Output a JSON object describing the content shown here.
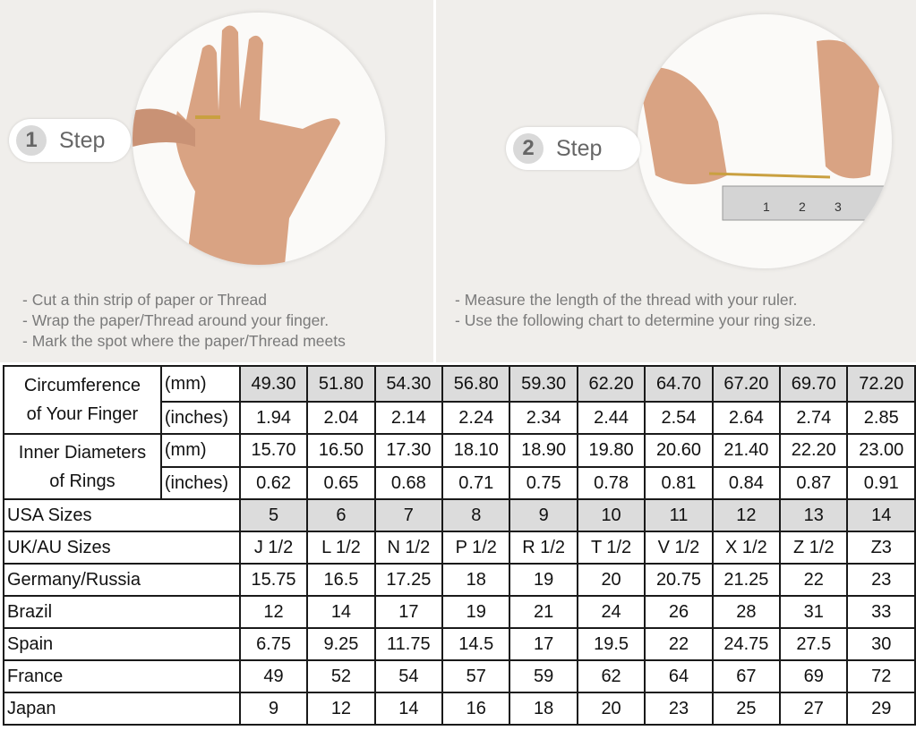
{
  "steps": [
    {
      "number": "1",
      "label": "Step",
      "instructions": [
        "Cut a thin strip of paper or Thread",
        "Wrap the paper/Thread around your finger.",
        "Mark the spot where the paper/Thread meets"
      ]
    },
    {
      "number": "2",
      "label": "Step",
      "instructions": [
        "Measure the length of the thread with your ruler.",
        "Use the following chart to determine your ring size."
      ]
    }
  ],
  "ruler_marks": [
    "1",
    "2",
    "3"
  ],
  "table": {
    "circumference": {
      "label": "Circumference of Your Finger",
      "label_lines": [
        "Circumference",
        "of Your Finger"
      ],
      "mm_unit": "(mm)",
      "mm": [
        "49.30",
        "51.80",
        "54.30",
        "56.80",
        "59.30",
        "62.20",
        "64.70",
        "67.20",
        "69.70",
        "72.20"
      ],
      "in_unit": "(inches)",
      "inches": [
        "1.94",
        "2.04",
        "2.14",
        "2.24",
        "2.34",
        "2.44",
        "2.54",
        "2.64",
        "2.74",
        "2.85"
      ]
    },
    "diameter": {
      "label_lines": [
        "Inner Diameters",
        "of Rings"
      ],
      "mm_unit": "(mm)",
      "mm": [
        "15.70",
        "16.50",
        "17.30",
        "18.10",
        "18.90",
        "19.80",
        "20.60",
        "21.40",
        "22.20",
        "23.00"
      ],
      "in_unit": "(inches)",
      "inches": [
        "0.62",
        "0.65",
        "0.68",
        "0.71",
        "0.75",
        "0.78",
        "0.81",
        "0.84",
        "0.87",
        "0.91"
      ]
    },
    "rows": [
      {
        "label": "USA Sizes",
        "values": [
          "5",
          "6",
          "7",
          "8",
          "9",
          "10",
          "11",
          "12",
          "13",
          "14"
        ],
        "shaded": true
      },
      {
        "label": "UK/AU Sizes",
        "values": [
          "J 1/2",
          "L 1/2",
          "N 1/2",
          "P 1/2",
          "R 1/2",
          "T 1/2",
          "V 1/2",
          "X 1/2",
          "Z 1/2",
          "Z3"
        ]
      },
      {
        "label": "Germany/Russia",
        "values": [
          "15.75",
          "16.5",
          "17.25",
          "18",
          "19",
          "20",
          "20.75",
          "21.25",
          "22",
          "23"
        ]
      },
      {
        "label": "Brazil",
        "values": [
          "12",
          "14",
          "17",
          "19",
          "21",
          "24",
          "26",
          "28",
          "31",
          "33"
        ]
      },
      {
        "label": "Spain",
        "values": [
          "6.75",
          "9.25",
          "11.75",
          "14.5",
          "17",
          "19.5",
          "22",
          "24.75",
          "27.5",
          "30"
        ]
      },
      {
        "label": "France",
        "values": [
          "49",
          "52",
          "54",
          "57",
          "59",
          "62",
          "64",
          "67",
          "69",
          "72"
        ]
      },
      {
        "label": "Japan",
        "values": [
          "9",
          "12",
          "14",
          "16",
          "18",
          "20",
          "23",
          "25",
          "27",
          "29"
        ]
      }
    ]
  },
  "colors": {
    "panel_bg": "#f0eeeb",
    "shade": "#dcdcdc",
    "text_gray": "#7a7a7a",
    "skin": "#d9a383"
  }
}
